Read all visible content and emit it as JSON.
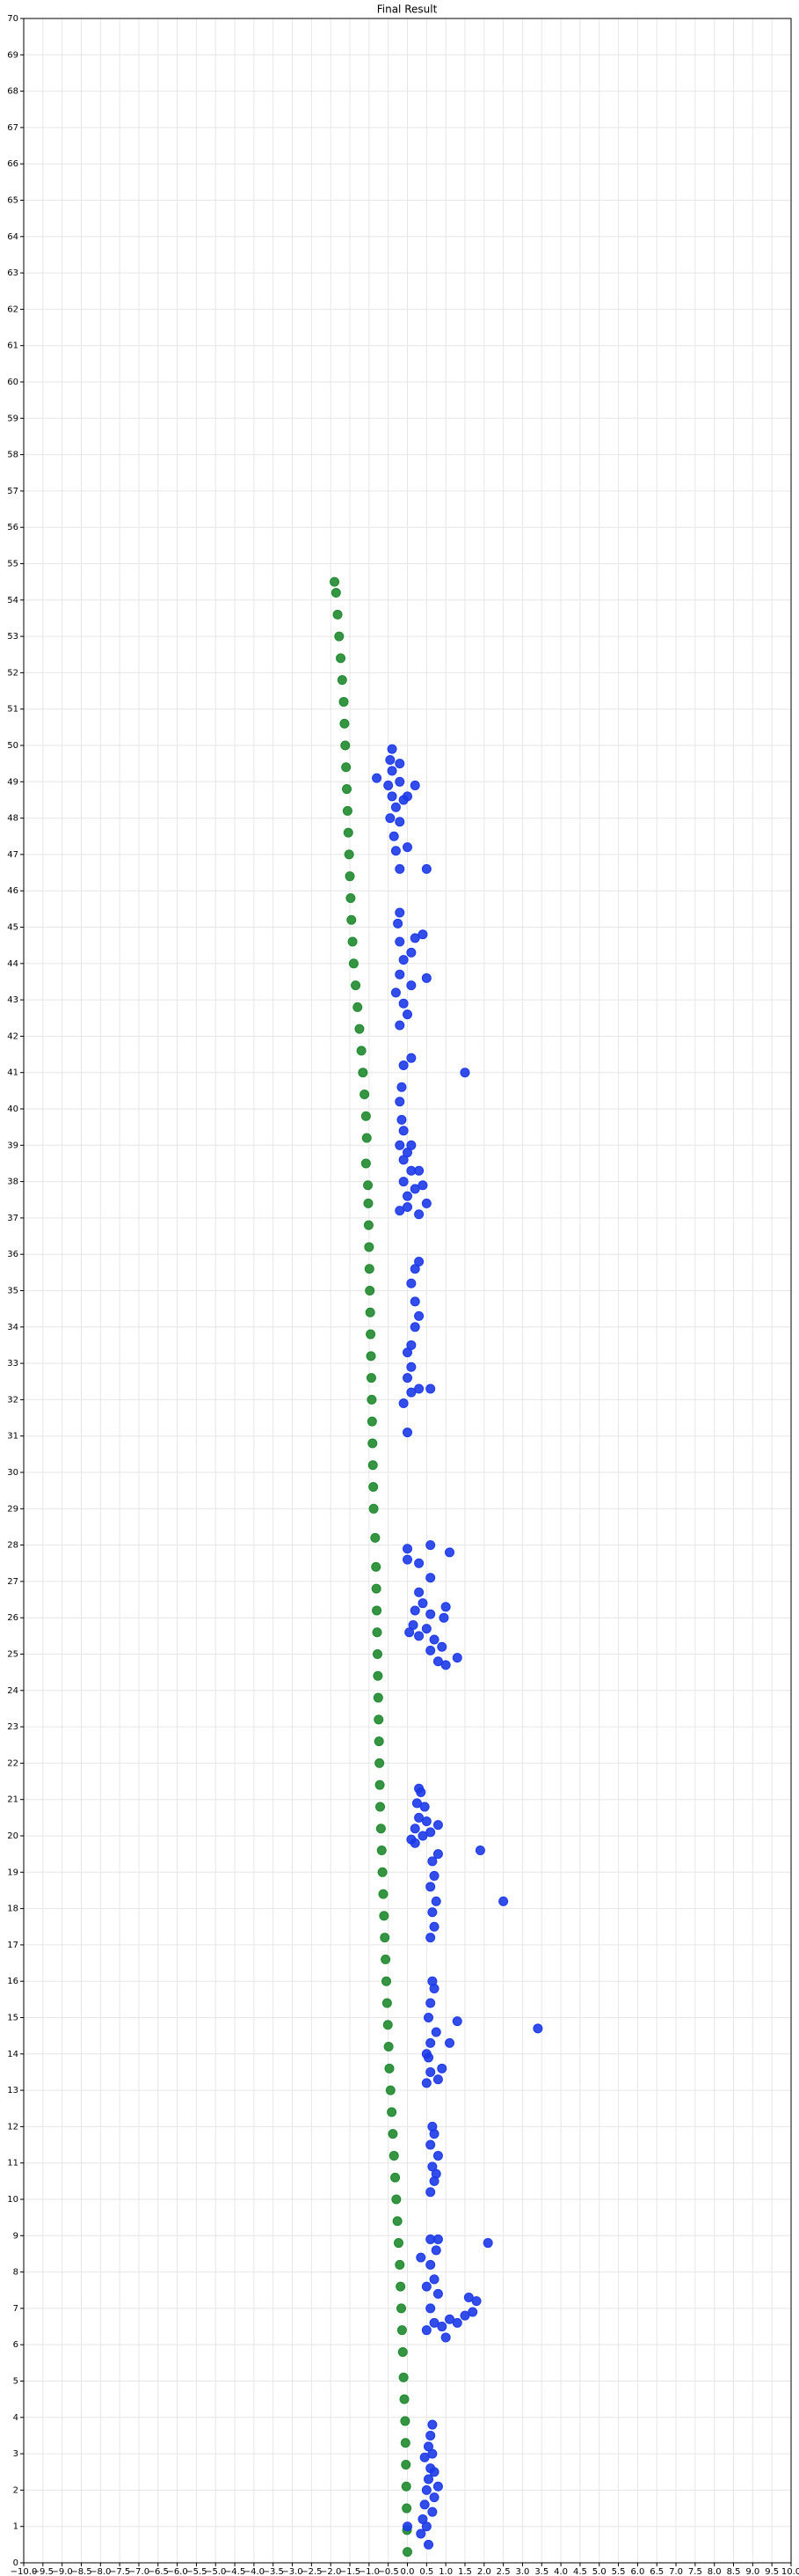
{
  "chart_data": {
    "type": "scatter",
    "title": "Final Result",
    "grid": true,
    "xlim": [
      -10,
      10
    ],
    "ylim": [
      0,
      70
    ],
    "xticks": [
      {
        "value": -10,
        "label": "−10.0"
      },
      {
        "value": -9.5,
        "label": "−9.5"
      },
      {
        "value": -9,
        "label": "−9.0"
      },
      {
        "value": -8.5,
        "label": "−8.5"
      },
      {
        "value": -8,
        "label": "−8.0"
      },
      {
        "value": -7.5,
        "label": "−7.5"
      },
      {
        "value": -7,
        "label": "−7.0"
      },
      {
        "value": -6.5,
        "label": "−6.5"
      },
      {
        "value": -6,
        "label": "−6.0"
      },
      {
        "value": -5.5,
        "label": "−5.5"
      },
      {
        "value": -5,
        "label": "−5.0"
      },
      {
        "value": -4.5,
        "label": "−4.5"
      },
      {
        "value": -4,
        "label": "−4.0"
      },
      {
        "value": -3.5,
        "label": "−3.5"
      },
      {
        "value": -3,
        "label": "−3.0"
      },
      {
        "value": -2.5,
        "label": "−2.5"
      },
      {
        "value": -2,
        "label": "−2.0"
      },
      {
        "value": -1.5,
        "label": "−1.5"
      },
      {
        "value": -1,
        "label": "−1.0"
      },
      {
        "value": -0.5,
        "label": "−0.5"
      },
      {
        "value": 0,
        "label": "0.0"
      },
      {
        "value": 0.5,
        "label": "0.5"
      },
      {
        "value": 1,
        "label": "1.0"
      },
      {
        "value": 1.5,
        "label": "1.5"
      },
      {
        "value": 2,
        "label": "2.0"
      },
      {
        "value": 2.5,
        "label": "2.5"
      },
      {
        "value": 3,
        "label": "3.0"
      },
      {
        "value": 3.5,
        "label": "3.5"
      },
      {
        "value": 4,
        "label": "4.0"
      },
      {
        "value": 4.5,
        "label": "4.5"
      },
      {
        "value": 5,
        "label": "5.0"
      },
      {
        "value": 5.5,
        "label": "5.5"
      },
      {
        "value": 6,
        "label": "6.0"
      },
      {
        "value": 6.5,
        "label": "6.5"
      },
      {
        "value": 7,
        "label": "7.0"
      },
      {
        "value": 7.5,
        "label": "7.5"
      },
      {
        "value": 8,
        "label": "8.0"
      },
      {
        "value": 8.5,
        "label": "8.5"
      },
      {
        "value": 9,
        "label": "9.0"
      },
      {
        "value": 9.5,
        "label": "9.5"
      },
      {
        "value": 10,
        "label": "10.0"
      }
    ],
    "yticks": [
      0,
      1,
      2,
      3,
      4,
      5,
      6,
      7,
      8,
      9,
      10,
      11,
      12,
      13,
      14,
      15,
      16,
      17,
      18,
      19,
      20,
      21,
      22,
      23,
      24,
      25,
      26,
      27,
      28,
      29,
      30,
      31,
      32,
      33,
      34,
      35,
      36,
      37,
      38,
      39,
      40,
      41,
      42,
      43,
      44,
      45,
      46,
      47,
      48,
      49,
      50,
      51,
      52,
      53,
      54,
      55,
      56,
      57,
      58,
      59,
      60,
      61,
      62,
      63,
      64,
      65,
      66,
      67,
      68,
      69,
      70
    ],
    "series": [
      {
        "color": "#1f8a2e",
        "x": [
          0,
          -0.01,
          -0.02,
          -0.03,
          -0.04,
          -0.05,
          -0.06,
          -0.08,
          -0.1,
          -0.12,
          -0.14,
          -0.16,
          -0.18,
          -0.2,
          -0.23,
          -0.26,
          -0.29,
          -0.32,
          -0.35,
          -0.38,
          -0.41,
          -0.44,
          -0.47,
          -0.49,
          -0.51,
          -0.53,
          -0.55,
          -0.57,
          -0.59,
          -0.61,
          -0.63,
          -0.65,
          -0.67,
          -0.69,
          -0.71,
          -0.72,
          -0.73,
          -0.74,
          -0.75,
          -0.76,
          -0.77,
          -0.78,
          -0.79,
          -0.8,
          -0.81,
          -0.82,
          -0.84,
          -0.88,
          -0.89,
          -0.9,
          -0.91,
          -0.92,
          -0.93,
          -0.94,
          -0.95,
          -0.96,
          -0.97,
          -0.98,
          -0.99,
          -1,
          -1.01,
          -1.02,
          -1.03,
          -1.08,
          -1.06,
          -1.08,
          -1.12,
          -1.16,
          -1.2,
          -1.25,
          -1.3,
          -1.35,
          -1.4,
          -1.43,
          -1.46,
          -1.48,
          -1.5,
          -1.52,
          -1.54,
          -1.56,
          -1.58,
          -1.6,
          -1.62,
          -1.64,
          -1.66,
          -1.7,
          -1.74,
          -1.78,
          -1.82,
          -1.86,
          -1.9
        ],
        "values": [
          0.3,
          0.9,
          1.5,
          2.1,
          2.7,
          3.3,
          3.9,
          4.5,
          5.1,
          5.8,
          6.4,
          7,
          7.6,
          8.2,
          8.8,
          9.4,
          10,
          10.6,
          11.2,
          11.8,
          12.4,
          13,
          13.6,
          14.2,
          14.8,
          15.4,
          16,
          16.6,
          17.2,
          17.8,
          18.4,
          19,
          19.6,
          20.2,
          20.8,
          21.4,
          22,
          22.6,
          23.2,
          23.8,
          24.4,
          25,
          25.6,
          26.2,
          26.8,
          27.4,
          28.2,
          29,
          29.6,
          30.2,
          30.8,
          31.4,
          32,
          32.6,
          33.2,
          33.8,
          34.4,
          35,
          35.6,
          36.2,
          36.8,
          37.4,
          37.9,
          38.5,
          39.2,
          39.8,
          40.4,
          41,
          41.6,
          42.2,
          42.8,
          43.4,
          44,
          44.6,
          45.2,
          45.8,
          46.4,
          47,
          47.6,
          48.2,
          48.8,
          49.4,
          50,
          50.6,
          51.2,
          51.8,
          52.4,
          53,
          53.6,
          54.2,
          54.5
        ]
      },
      {
        "color": "#1c3ae8",
        "x": [
          0.35,
          0.4,
          0.45,
          0.5,
          0.55,
          0.6,
          0.45,
          0.55,
          0.6,
          0.65,
          0.5,
          0.65,
          0.7,
          0.8,
          0.7,
          0.65,
          0.55,
          0,
          0.5,
          0.7,
          0.9,
          1.1,
          1.3,
          1.5,
          1.7,
          1.8,
          1.6,
          0.6,
          0.8,
          0.7,
          0.6,
          0.75,
          0.6,
          0.8,
          0.35,
          2.1,
          1,
          0.5,
          0.6,
          0.7,
          0.65,
          0.8,
          0.6,
          0.7,
          0.65,
          0.75,
          0.5,
          0.6,
          0.8,
          0.9,
          0.55,
          0.6,
          0.75,
          0.55,
          0.6,
          0.7,
          0.5,
          1.1,
          1.3,
          3.4,
          0.65,
          0.6,
          0.7,
          0.65,
          0.75,
          0.6,
          0.7,
          0.65,
          0.8,
          2.5,
          1.9,
          0.1,
          0.2,
          0.3,
          0.25,
          0.35,
          0.4,
          0.5,
          0.45,
          0.3,
          0.6,
          0.8,
          0.2,
          0.05,
          0.15,
          0.3,
          0.5,
          0.7,
          0.9,
          0.6,
          1,
          0.8,
          1.3,
          0.2,
          0.4,
          0.3,
          0.95,
          1,
          0.6,
          0.6,
          0.3,
          0,
          0,
          0.6,
          1.1,
          0,
          -0.1,
          0.1,
          0.3,
          0.6,
          0,
          0.1,
          0,
          0.1,
          0.2,
          0.3,
          0.2,
          0.1,
          0.2,
          0.3,
          -0.2,
          0,
          0.3,
          0.5,
          0,
          0.2,
          0.4,
          -0.1,
          0.1,
          0.3,
          -0.1,
          0,
          -0.2,
          0.1,
          -0.1,
          -0.15,
          -0.2,
          -0.15,
          -0.1,
          0.1,
          1.5,
          -0.2,
          0,
          -0.1,
          -0.3,
          0.1,
          -0.2,
          0.5,
          -0.1,
          0.1,
          -0.2,
          0.2,
          0.4,
          -0.25,
          -0.2,
          -0.2,
          0.5,
          -0.3,
          0,
          -0.35,
          -0.2,
          -0.45,
          -0.3,
          -0.4,
          -0.1,
          0,
          -0.5,
          -0.2,
          0.2,
          -0.8,
          -0.4,
          -0.45,
          -0.4,
          -0.2
        ],
        "values": [
          0.8,
          1.2,
          1.6,
          2,
          2.3,
          2.6,
          2.9,
          3.2,
          3.5,
          3.8,
          1,
          1.4,
          1.8,
          2.1,
          2.5,
          3,
          0.5,
          1,
          6.4,
          6.6,
          6.5,
          6.7,
          6.6,
          6.8,
          6.9,
          7.2,
          7.3,
          7,
          7.4,
          7.8,
          8.2,
          8.6,
          8.9,
          8.9,
          8.4,
          8.8,
          6.2,
          7.6,
          10.2,
          10.5,
          10.9,
          11.2,
          11.5,
          11.8,
          12,
          10.7,
          13.2,
          13.5,
          13.3,
          13.6,
          13.9,
          14.3,
          14.6,
          15,
          15.4,
          15.8,
          14,
          14.3,
          14.9,
          14.7,
          16,
          17.2,
          17.5,
          17.9,
          18.2,
          18.6,
          18.9,
          19.3,
          19.5,
          18.2,
          19.6,
          19.9,
          20.2,
          20.5,
          20.9,
          21.2,
          20,
          20.4,
          20.8,
          21.3,
          20.1,
          20.3,
          19.8,
          25.6,
          25.8,
          25.5,
          25.7,
          25.4,
          25.2,
          25.1,
          24.7,
          24.8,
          24.9,
          26.2,
          26.4,
          26.7,
          26,
          26.3,
          26.1,
          27.1,
          27.5,
          27.6,
          27.9,
          28,
          27.8,
          31.1,
          31.9,
          32.2,
          32.3,
          32.3,
          32.6,
          32.9,
          33.3,
          33.5,
          34,
          34.3,
          34.7,
          35.2,
          35.6,
          35.8,
          37.2,
          37.3,
          37.1,
          37.4,
          37.6,
          37.8,
          37.9,
          38,
          38.3,
          38.3,
          38.6,
          38.8,
          39,
          39,
          39.4,
          39.7,
          40.2,
          40.6,
          41.2,
          41.4,
          41,
          42.3,
          42.6,
          42.9,
          43.2,
          43.4,
          43.7,
          43.6,
          44.1,
          44.3,
          44.6,
          44.7,
          44.8,
          45.1,
          45.4,
          46.6,
          46.6,
          47.1,
          47.2,
          47.5,
          47.9,
          48,
          48.3,
          48.6,
          48.5,
          48.6,
          48.9,
          49,
          48.9,
          49.1,
          49.3,
          49.6,
          49.9,
          49.5
        ]
      }
    ]
  }
}
